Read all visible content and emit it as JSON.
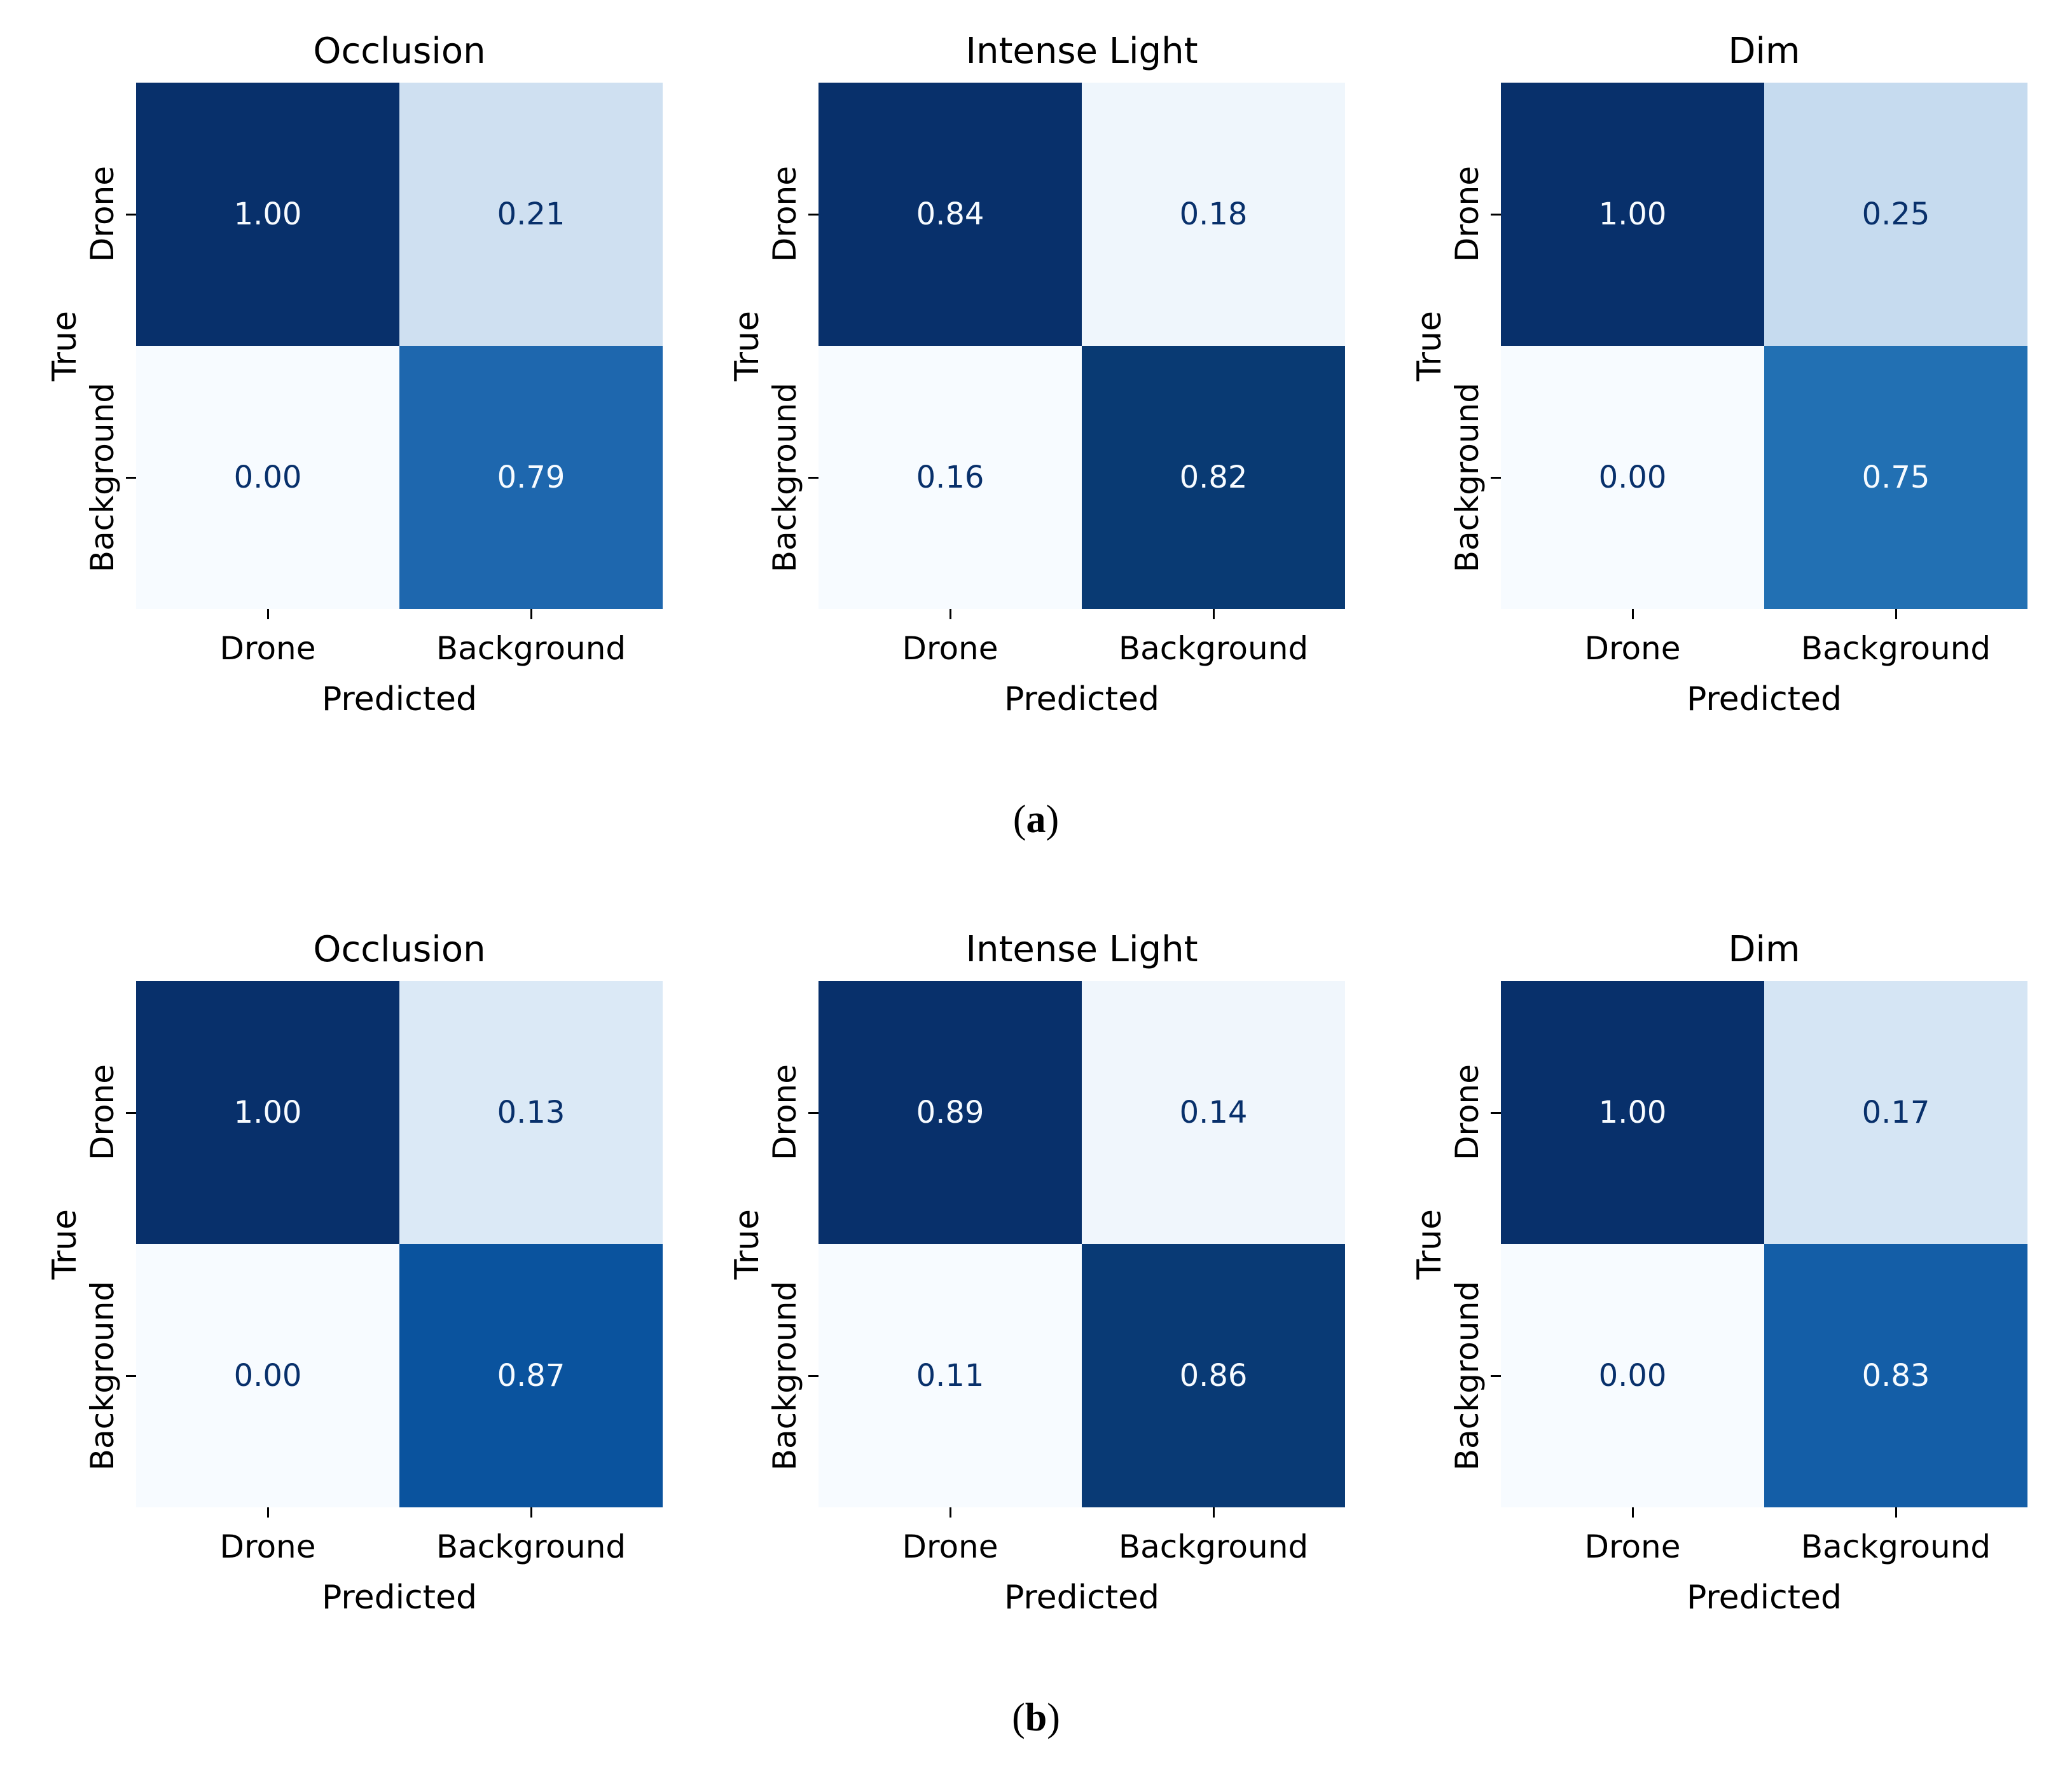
{
  "page": {
    "background": "#ffffff"
  },
  "figure": {
    "rows": [
      {
        "caption_open": "(",
        "caption_letter": "a",
        "caption_close": ")",
        "panels": [
          {
            "title": "Occlusion",
            "xlabel": "Predicted",
            "ylabel": "True",
            "xticks": [
              "Drone",
              "Background"
            ],
            "yticks": [
              "Drone",
              "Background"
            ],
            "cells": [
              {
                "value": "1.00",
                "style": "background:#08306b;color:#f7fbff"
              },
              {
                "value": "0.21",
                "style": "background:#cfe0f1;color:#08306b"
              },
              {
                "value": "0.00",
                "style": "background:#f7fbff;color:#08306b"
              },
              {
                "value": "0.79",
                "style": "background:#1e67ae;color:#f7fbff"
              }
            ]
          },
          {
            "title": "Intense Light",
            "xlabel": "Predicted",
            "ylabel": "True",
            "xticks": [
              "Drone",
              "Background"
            ],
            "yticks": [
              "Drone",
              "Background"
            ],
            "cells": [
              {
                "value": "0.84",
                "style": "background:#08306b;color:#f7fbff"
              },
              {
                "value": "0.18",
                "style": "background:#eff6fc;color:#08306b"
              },
              {
                "value": "0.16",
                "style": "background:#f7fbff;color:#08306b"
              },
              {
                "value": "0.82",
                "style": "background:#093a73;color:#f7fbff"
              }
            ]
          },
          {
            "title": "Dim",
            "xlabel": "Predicted",
            "ylabel": "True",
            "xticks": [
              "Drone",
              "Background"
            ],
            "yticks": [
              "Drone",
              "Background"
            ],
            "cells": [
              {
                "value": "1.00",
                "style": "background:#08306b;color:#f7fbff"
              },
              {
                "value": "0.25",
                "style": "background:#c6dbef;color:#08306b"
              },
              {
                "value": "0.00",
                "style": "background:#f7fbff;color:#08306b"
              },
              {
                "value": "0.75",
                "style": "background:#2270b3;color:#f7fbff"
              }
            ]
          }
        ]
      },
      {
        "caption_open": "(",
        "caption_letter": "b",
        "caption_close": ")",
        "panels": [
          {
            "title": "Occlusion",
            "xlabel": "Predicted",
            "ylabel": "True",
            "xticks": [
              "Drone",
              "Background"
            ],
            "yticks": [
              "Drone",
              "Background"
            ],
            "cells": [
              {
                "value": "1.00",
                "style": "background:#08306b;color:#f7fbff"
              },
              {
                "value": "0.13",
                "style": "background:#dbe9f6;color:#08306b"
              },
              {
                "value": "0.00",
                "style": "background:#f7fbff;color:#08306b"
              },
              {
                "value": "0.87",
                "style": "background:#0a539e;color:#f7fbff"
              }
            ]
          },
          {
            "title": "Intense Light",
            "xlabel": "Predicted",
            "ylabel": "True",
            "xticks": [
              "Drone",
              "Background"
            ],
            "yticks": [
              "Drone",
              "Background"
            ],
            "cells": [
              {
                "value": "0.89",
                "style": "background:#08306b;color:#f7fbff"
              },
              {
                "value": "0.14",
                "style": "background:#f0f6fc;color:#08306b"
              },
              {
                "value": "0.11",
                "style": "background:#f7fbff;color:#08306b"
              },
              {
                "value": "0.86",
                "style": "background:#093a75;color:#f7fbff"
              }
            ]
          },
          {
            "title": "Dim",
            "xlabel": "Predicted",
            "ylabel": "True",
            "xticks": [
              "Drone",
              "Background"
            ],
            "yticks": [
              "Drone",
              "Background"
            ],
            "cells": [
              {
                "value": "1.00",
                "style": "background:#08306b;color:#f7fbff"
              },
              {
                "value": "0.17",
                "style": "background:#d5e5f4;color:#08306b"
              },
              {
                "value": "0.00",
                "style": "background:#f7fbff;color:#08306b"
              },
              {
                "value": "0.83",
                "style": "background:#145ea7;color:#f7fbff"
              }
            ]
          }
        ]
      }
    ]
  },
  "chart_data": [
    {
      "type": "heatmap",
      "group": "a",
      "title": "Occlusion",
      "xlabel": "Predicted",
      "ylabel": "True",
      "x": [
        "Drone",
        "Background"
      ],
      "y": [
        "Drone",
        "Background"
      ],
      "matrix": [
        [
          1.0,
          0.21
        ],
        [
          0.0,
          0.79
        ]
      ],
      "colormap": "Blues"
    },
    {
      "type": "heatmap",
      "group": "a",
      "title": "Intense Light",
      "xlabel": "Predicted",
      "ylabel": "True",
      "x": [
        "Drone",
        "Background"
      ],
      "y": [
        "Drone",
        "Background"
      ],
      "matrix": [
        [
          0.84,
          0.18
        ],
        [
          0.16,
          0.82
        ]
      ],
      "colormap": "Blues"
    },
    {
      "type": "heatmap",
      "group": "a",
      "title": "Dim",
      "xlabel": "Predicted",
      "ylabel": "True",
      "x": [
        "Drone",
        "Background"
      ],
      "y": [
        "Drone",
        "Background"
      ],
      "matrix": [
        [
          1.0,
          0.25
        ],
        [
          0.0,
          0.75
        ]
      ],
      "colormap": "Blues"
    },
    {
      "type": "heatmap",
      "group": "b",
      "title": "Occlusion",
      "xlabel": "Predicted",
      "ylabel": "True",
      "x": [
        "Drone",
        "Background"
      ],
      "y": [
        "Drone",
        "Background"
      ],
      "matrix": [
        [
          1.0,
          0.13
        ],
        [
          0.0,
          0.87
        ]
      ],
      "colormap": "Blues"
    },
    {
      "type": "heatmap",
      "group": "b",
      "title": "Intense Light",
      "xlabel": "Predicted",
      "ylabel": "True",
      "x": [
        "Drone",
        "Background"
      ],
      "y": [
        "Drone",
        "Background"
      ],
      "matrix": [
        [
          0.89,
          0.14
        ],
        [
          0.11,
          0.86
        ]
      ],
      "colormap": "Blues"
    },
    {
      "type": "heatmap",
      "group": "b",
      "title": "Dim",
      "xlabel": "Predicted",
      "ylabel": "True",
      "x": [
        "Drone",
        "Background"
      ],
      "y": [
        "Drone",
        "Background"
      ],
      "matrix": [
        [
          1.0,
          0.17
        ],
        [
          0.0,
          0.83
        ]
      ],
      "colormap": "Blues"
    }
  ]
}
